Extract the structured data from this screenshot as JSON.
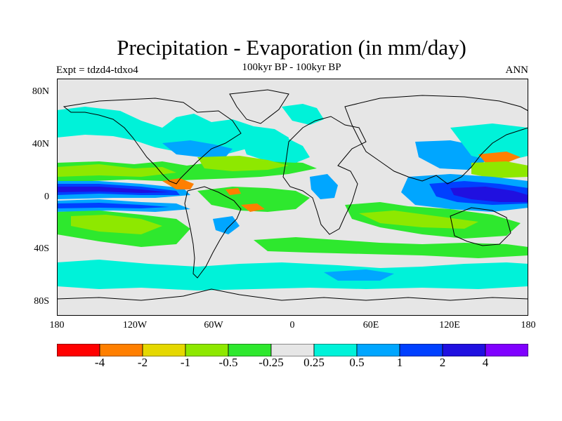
{
  "title": "Precipitation - Evaporation (in mm/day)",
  "subtitle": "100kyr BP - 100kyr BP",
  "left_label": "Expt = tdzd4-tdxo4",
  "right_label": "ANN",
  "lat_ticks": [
    "80N",
    "40N",
    "0",
    "40S",
    "80S"
  ],
  "lon_ticks": [
    "180",
    "120W",
    "60W",
    "0",
    "60E",
    "120E",
    "180"
  ],
  "colorbar": {
    "colors": [
      "#ff0000",
      "#ff7f00",
      "#e5d800",
      "#8ee800",
      "#2ee82e",
      "#e6e6e6",
      "#00f2d9",
      "#00a6ff",
      "#0040ff",
      "#2010e0",
      "#8000ff"
    ],
    "labels": [
      "-4",
      "-2",
      "-1",
      "-0.5",
      "-0.25",
      "0.25",
      "0.5",
      "1",
      "2",
      "4"
    ]
  },
  "colors": {
    "land": "#e6e6e6",
    "coast": "#000000"
  }
}
